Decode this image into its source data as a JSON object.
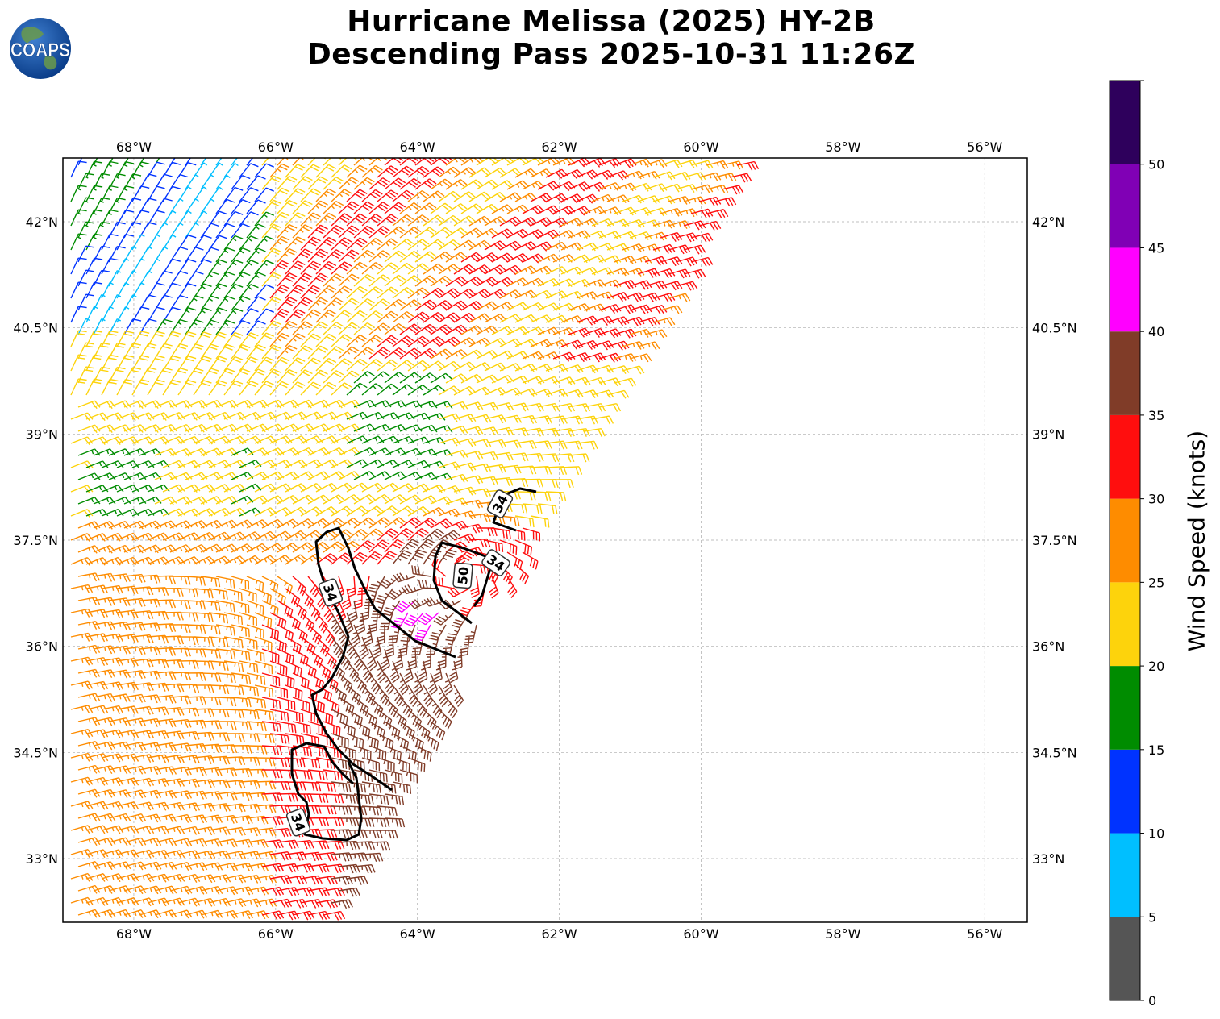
{
  "title": {
    "line1": "Hurricane Melissa (2025) HY-2B",
    "line2": "Descending Pass 2025-10-31 11:26Z"
  },
  "logo": {
    "text": "COAPS",
    "icon": "globe-logo-icon"
  },
  "map": {
    "lon_range": [
      -69,
      -55.4
    ],
    "lat_range": [
      32.1,
      42.9
    ],
    "lon_ticks": [
      "68°W",
      "66°W",
      "64°W",
      "62°W",
      "60°W",
      "58°W",
      "56°W"
    ],
    "lon_tick_values": [
      -68,
      -66,
      -64,
      -62,
      -60,
      -58,
      -56
    ],
    "lat_ticks": [
      "33°N",
      "34.5°N",
      "36°N",
      "37.5°N",
      "39°N",
      "40.5°N",
      "42°N"
    ],
    "lat_tick_values": [
      33,
      34.5,
      36,
      37.5,
      39,
      40.5,
      42
    ],
    "gridlines": true,
    "contour_labels": [
      "34",
      "34",
      "34",
      "34",
      "50"
    ]
  },
  "colorbar": {
    "label": "Wind Speed (knots)",
    "tick_labels": [
      "0",
      "5",
      "10",
      "15",
      "20",
      "25",
      "30",
      "35",
      "40",
      "45",
      "50"
    ],
    "bins": [
      {
        "from": 0,
        "to": 5,
        "color": "#555555"
      },
      {
        "from": 5,
        "to": 10,
        "color": "#00bfff"
      },
      {
        "from": 10,
        "to": 15,
        "color": "#0033ff"
      },
      {
        "from": 15,
        "to": 20,
        "color": "#008c00"
      },
      {
        "from": 20,
        "to": 25,
        "color": "#fdd30c"
      },
      {
        "from": 25,
        "to": 30,
        "color": "#fe8c00"
      },
      {
        "from": 30,
        "to": 35,
        "color": "#ff0e0e"
      },
      {
        "from": 35,
        "to": 40,
        "color": "#803c28"
      },
      {
        "from": 40,
        "to": 45,
        "color": "#ff00ff"
      },
      {
        "from": 45,
        "to": 50,
        "color": "#8000b5"
      },
      {
        "from": 50,
        "to": 55,
        "color": "#2e005c"
      }
    ]
  }
}
